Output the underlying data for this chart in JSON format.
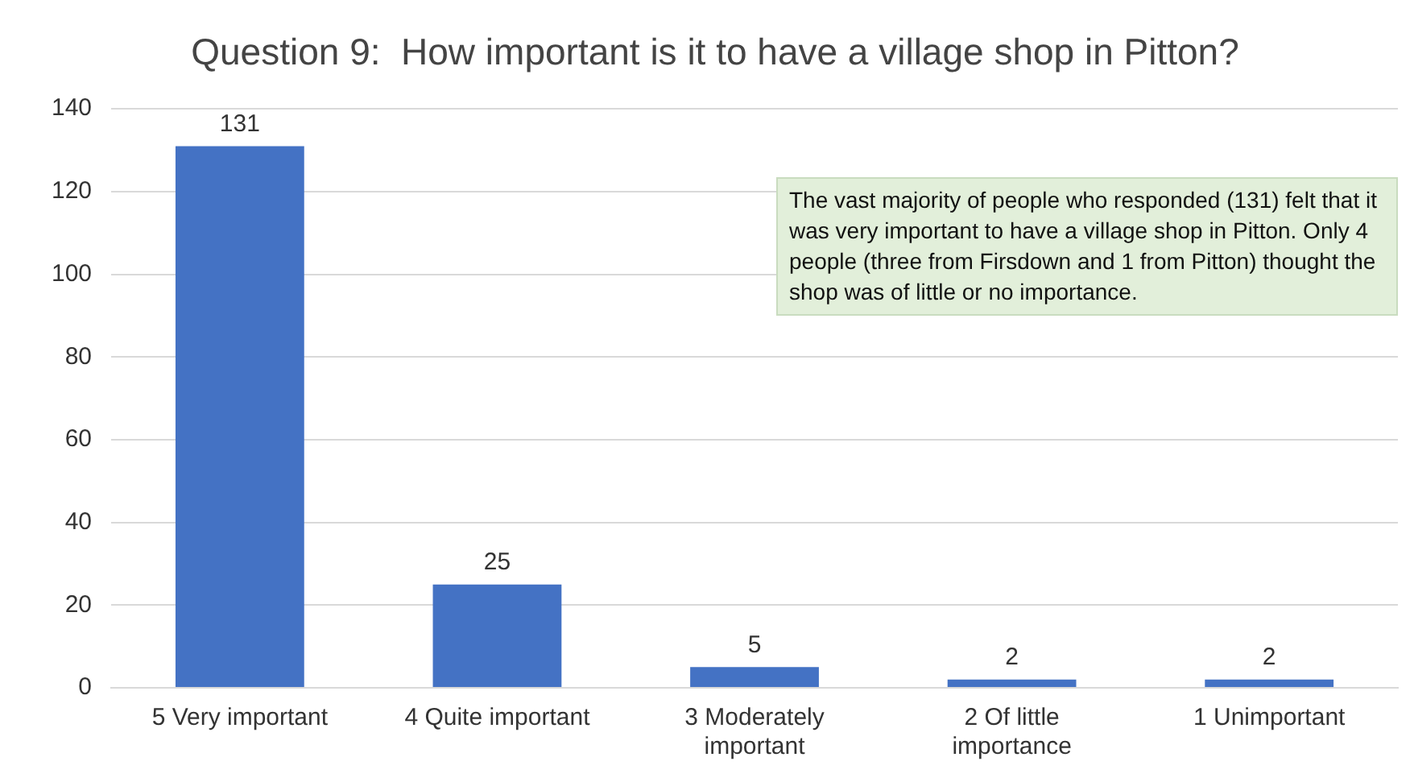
{
  "chart_data": {
    "type": "bar",
    "title": "Question 9:  How important is it to have a village shop in Pitton?",
    "categories": [
      "5 Very important",
      "4 Quite important",
      "3 Moderately important",
      "2 Of little importance",
      "1 Unimportant"
    ],
    "values": [
      131,
      25,
      5,
      2,
      2
    ],
    "color": "#4472c4",
    "ylim": [
      0,
      140
    ],
    "yticks": [
      0,
      20,
      40,
      60,
      80,
      100,
      120,
      140
    ],
    "grid": "y",
    "data_labels": true,
    "annotations": [
      "The vast majority of people who responded (131) felt that it was very important to have a village shop in Pitton.  Only 4 people (three from Firsdown and 1 from Pitton) thought the shop was of little or no importance."
    ]
  }
}
